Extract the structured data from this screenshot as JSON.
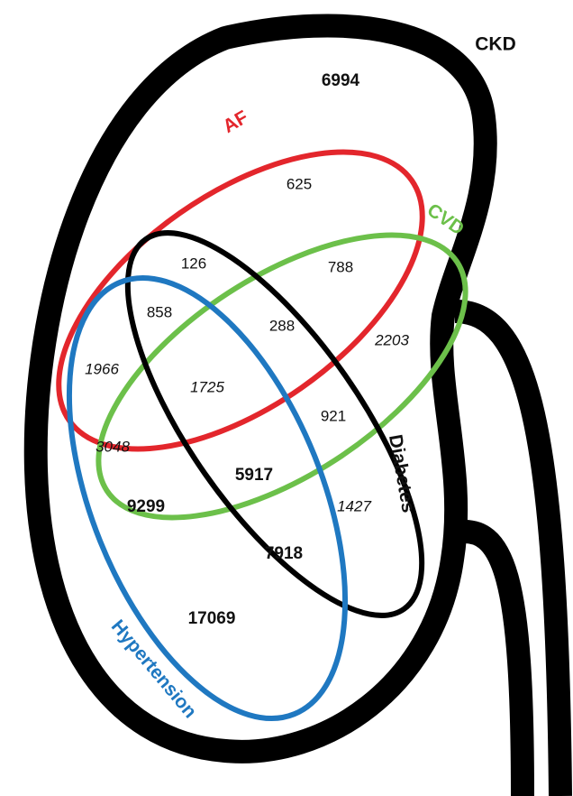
{
  "sets": [
    {
      "label": "CKD"
    },
    {
      "label": "AF"
    },
    {
      "label": "CVD"
    },
    {
      "label": "Diabetes"
    },
    {
      "label": "Hypertension"
    }
  ],
  "regions": [
    6994,
    625,
    126,
    788,
    858,
    288,
    2203,
    1966,
    1725,
    921,
    3048,
    5917,
    9299,
    1427,
    7918,
    17069
  ]
}
